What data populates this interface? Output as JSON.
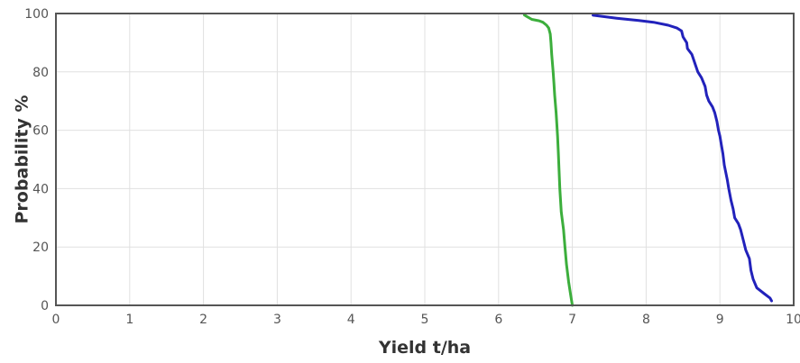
{
  "chart_data": {
    "type": "line",
    "title": "",
    "xlabel": "Yield t/ha",
    "ylabel": "Probability %",
    "xlim": [
      0,
      10
    ],
    "ylim": [
      0,
      100
    ],
    "x_ticks": [
      0,
      1,
      2,
      3,
      4,
      5,
      6,
      7,
      8,
      9,
      10
    ],
    "y_ticks": [
      0,
      20,
      40,
      60,
      80,
      100
    ],
    "grid": true,
    "legend": "none",
    "series": [
      {
        "color": "#3cae3c",
        "points": [
          [
            7.0,
            0
          ],
          [
            6.98,
            3
          ],
          [
            6.95,
            8
          ],
          [
            6.92,
            14
          ],
          [
            6.9,
            20
          ],
          [
            6.88,
            26
          ],
          [
            6.85,
            32
          ],
          [
            6.84,
            36
          ],
          [
            6.83,
            40
          ],
          [
            6.82,
            46
          ],
          [
            6.81,
            52
          ],
          [
            6.8,
            58
          ],
          [
            6.78,
            66
          ],
          [
            6.76,
            72
          ],
          [
            6.75,
            76
          ],
          [
            6.74,
            80
          ],
          [
            6.72,
            86
          ],
          [
            6.71,
            90
          ],
          [
            6.7,
            93
          ],
          [
            6.68,
            95
          ],
          [
            6.65,
            96
          ],
          [
            6.6,
            97
          ],
          [
            6.55,
            97.5
          ],
          [
            6.45,
            98
          ],
          [
            6.38,
            99
          ],
          [
            6.35,
            99.5
          ]
        ]
      },
      {
        "color": "#2222bb",
        "points": [
          [
            9.7,
            1.5
          ],
          [
            9.68,
            2.5
          ],
          [
            9.6,
            4
          ],
          [
            9.5,
            6
          ],
          [
            9.45,
            9
          ],
          [
            9.42,
            12
          ],
          [
            9.4,
            16
          ],
          [
            9.35,
            19
          ],
          [
            9.32,
            22
          ],
          [
            9.28,
            26
          ],
          [
            9.25,
            28
          ],
          [
            9.2,
            30
          ],
          [
            9.18,
            33
          ],
          [
            9.15,
            36
          ],
          [
            9.12,
            40
          ],
          [
            9.1,
            43
          ],
          [
            9.06,
            48
          ],
          [
            9.04,
            52
          ],
          [
            9.02,
            55
          ],
          [
            9.0,
            58
          ],
          [
            8.98,
            60
          ],
          [
            8.96,
            63
          ],
          [
            8.93,
            66
          ],
          [
            8.9,
            68
          ],
          [
            8.85,
            70
          ],
          [
            8.82,
            72
          ],
          [
            8.8,
            75
          ],
          [
            8.75,
            78
          ],
          [
            8.7,
            80
          ],
          [
            8.66,
            83
          ],
          [
            8.62,
            86
          ],
          [
            8.56,
            88
          ],
          [
            8.55,
            90
          ],
          [
            8.5,
            92
          ],
          [
            8.48,
            94
          ],
          [
            8.42,
            95
          ],
          [
            8.3,
            96
          ],
          [
            8.1,
            97
          ],
          [
            7.9,
            97.6
          ],
          [
            7.6,
            98.4
          ],
          [
            7.28,
            99.4
          ]
        ]
      }
    ]
  }
}
